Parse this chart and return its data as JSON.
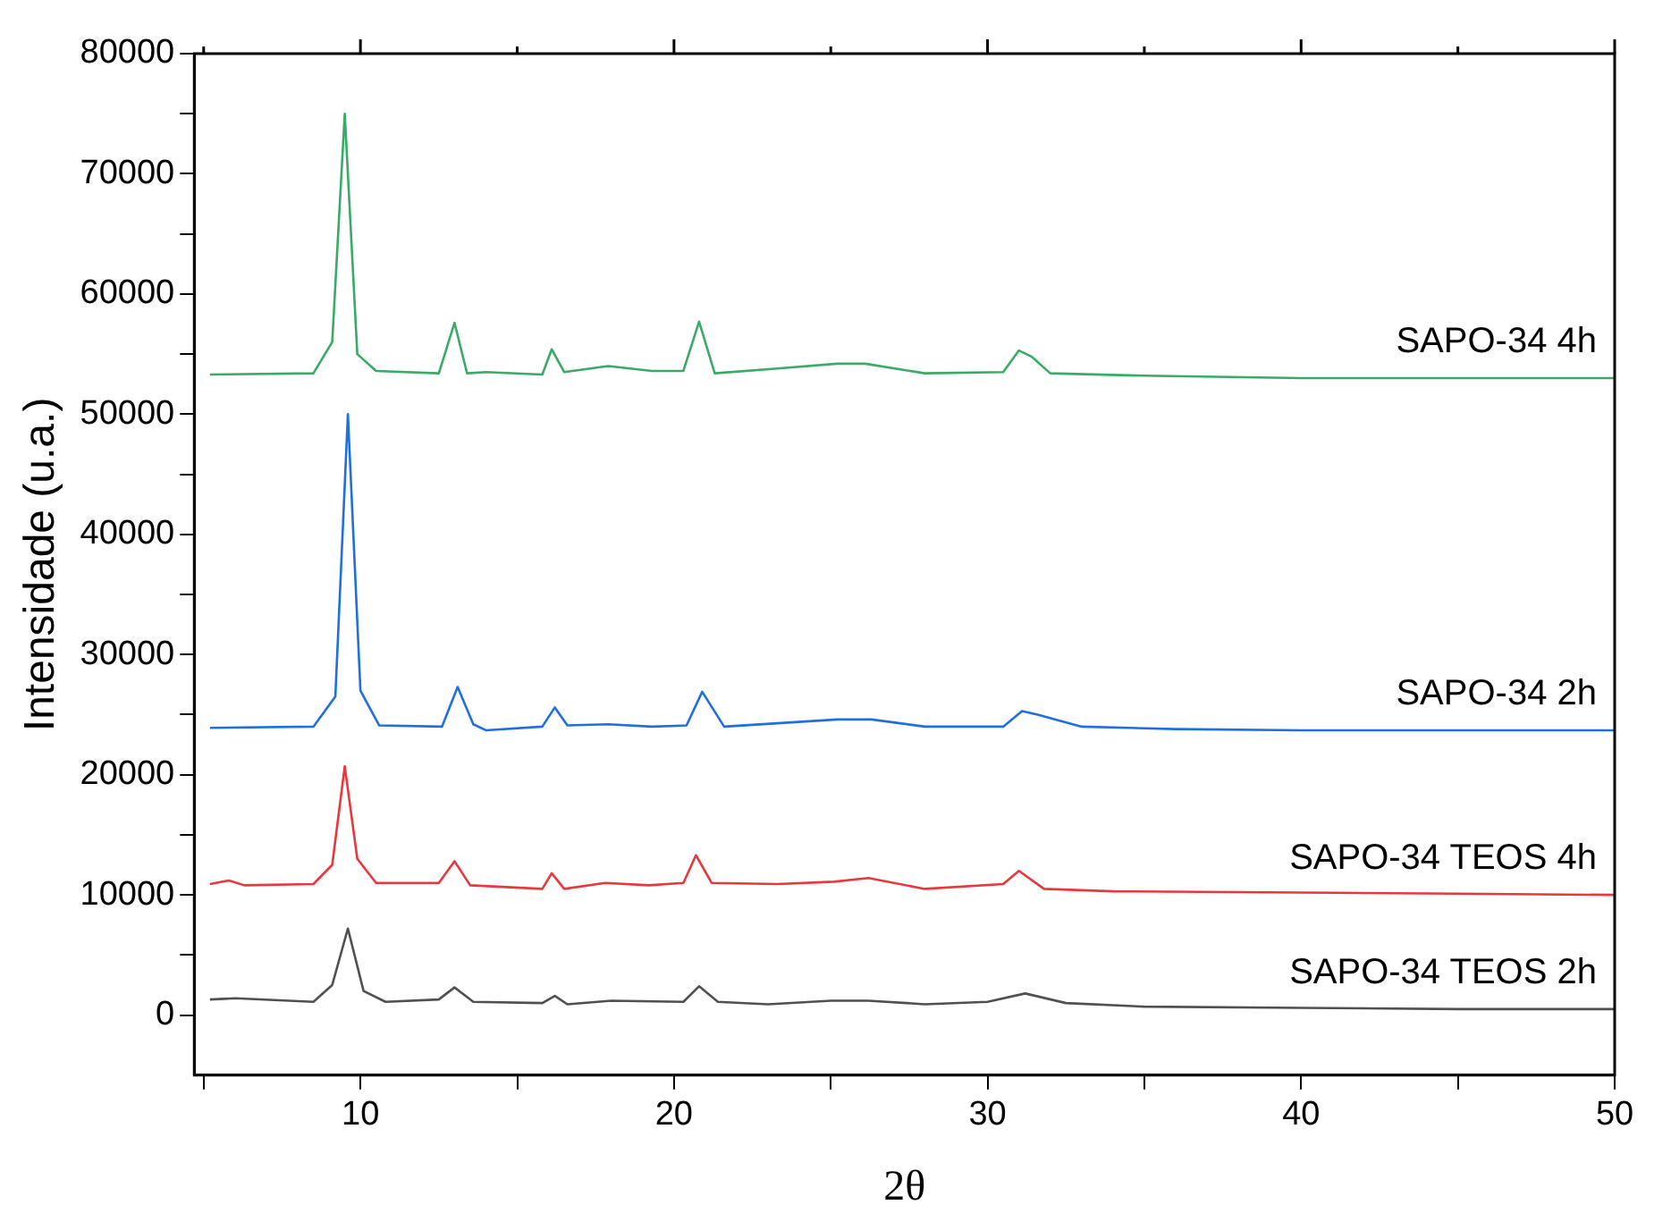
{
  "chart_data": {
    "type": "line",
    "xlabel": "2θ",
    "ylabel": "Intensidade (u.a.)",
    "xlim": [
      4.7,
      50
    ],
    "ylim": [
      -5000,
      80000
    ],
    "xticks": [
      {
        "value": 5,
        "label": null
      },
      10,
      {
        "value": 15,
        "label": null
      },
      20,
      {
        "value": 25,
        "label": null
      },
      30,
      {
        "value": 35,
        "label": null
      },
      40,
      {
        "value": 45,
        "label": null
      },
      50
    ],
    "yticks": [
      0,
      {
        "value": 5000,
        "label": null
      },
      10000,
      {
        "value": 15000,
        "label": null
      },
      20000,
      {
        "value": 25000,
        "label": null
      },
      30000,
      {
        "value": 35000,
        "label": null
      },
      40000,
      {
        "value": 45000,
        "label": null
      },
      50000,
      {
        "value": 55000,
        "label": null
      },
      60000,
      {
        "value": 65000,
        "label": null
      },
      70000,
      {
        "value": 75000,
        "label": null
      },
      80000
    ],
    "grid": false,
    "legend": false,
    "marker": "none",
    "line_style": "solid",
    "series": [
      {
        "name": "SAPO-34 TEOS 2h",
        "color": "#505050",
        "x": [
          5.2,
          6,
          8.5,
          9.1,
          9.6,
          10.1,
          10.8,
          12.5,
          13,
          13.6,
          15.8,
          16.2,
          16.6,
          18,
          20.3,
          20.8,
          21.4,
          23,
          25,
          26.2,
          28,
          30,
          31.2,
          32.5,
          35,
          40,
          45,
          50
        ],
        "values": [
          1300,
          1400,
          1100,
          2500,
          7200,
          2000,
          1100,
          1300,
          2300,
          1100,
          1000,
          1600,
          900,
          1200,
          1100,
          2400,
          1100,
          900,
          1200,
          1200,
          900,
          1100,
          1800,
          1000,
          700,
          600,
          500,
          500
        ]
      },
      {
        "name": "SAPO-34 TEOS 4h",
        "color": "#e8383d",
        "x": [
          5.2,
          5.8,
          6.3,
          8.5,
          9.1,
          9.5,
          9.9,
          10.5,
          12.5,
          13,
          13.5,
          15.8,
          16.1,
          16.5,
          17.8,
          19.2,
          20.3,
          20.7,
          21.2,
          23.3,
          25.1,
          26.2,
          28,
          30.5,
          31,
          31.8,
          34,
          40,
          45,
          50
        ],
        "values": [
          10900,
          11200,
          10800,
          10900,
          12500,
          20700,
          13000,
          11000,
          11000,
          12800,
          10800,
          10500,
          11800,
          10500,
          11000,
          10800,
          11000,
          13300,
          11000,
          10900,
          11100,
          11400,
          10500,
          10900,
          12000,
          10500,
          10300,
          10200,
          10100,
          10000
        ]
      },
      {
        "name": "SAPO-34 2h",
        "color": "#1f6fe0",
        "x": [
          5.2,
          8.5,
          9.2,
          9.6,
          10,
          10.6,
          12.6,
          13.1,
          13.6,
          14,
          15.8,
          16.2,
          16.6,
          17.9,
          19.3,
          20.4,
          20.9,
          21.6,
          23.4,
          25.2,
          26.3,
          28,
          30.5,
          31.1,
          31.6,
          33,
          36,
          40,
          45,
          50
        ],
        "values": [
          23900,
          24000,
          26500,
          50000,
          27000,
          24100,
          24000,
          27300,
          24200,
          23700,
          24000,
          25600,
          24100,
          24200,
          24000,
          24100,
          26900,
          24000,
          24300,
          24600,
          24600,
          24000,
          24000,
          25300,
          25000,
          24000,
          23800,
          23700,
          23700,
          23700
        ]
      },
      {
        "name": "SAPO-34 4h",
        "color": "#3aaa67",
        "x": [
          5.2,
          8.5,
          9.1,
          9.5,
          9.9,
          10.5,
          12.5,
          13,
          13.4,
          14,
          15.8,
          16.1,
          16.5,
          17.9,
          19.3,
          20.3,
          20.8,
          21.3,
          23.3,
          25.2,
          26.1,
          28,
          30.5,
          31,
          31.4,
          32,
          35,
          40,
          45,
          50
        ],
        "values": [
          53300,
          53400,
          56000,
          75000,
          55000,
          53600,
          53400,
          57600,
          53400,
          53500,
          53300,
          55400,
          53500,
          54000,
          53600,
          53600,
          57700,
          53400,
          53800,
          54200,
          54200,
          53400,
          53500,
          55300,
          54800,
          53400,
          53200,
          53000,
          53000,
          53000
        ]
      }
    ]
  }
}
